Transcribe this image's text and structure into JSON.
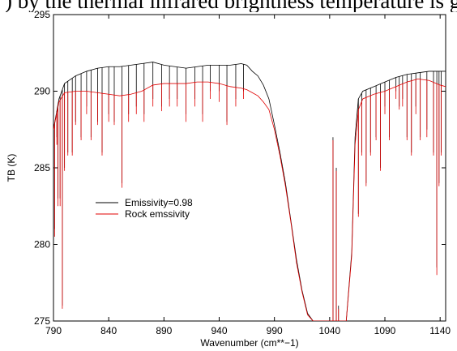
{
  "headline_fragment": ") by the thermal infrared brightness temperature is greatly",
  "chart_data": {
    "type": "line",
    "title": "",
    "xlabel": "Wavenumber (cm**−1)",
    "ylabel": "TB (K)",
    "xlim": [
      790,
      1145
    ],
    "ylim": [
      275,
      295
    ],
    "x_ticks": [
      790,
      840,
      890,
      940,
      990,
      1040,
      1090,
      1140
    ],
    "y_ticks": [
      275,
      280,
      285,
      290,
      295
    ],
    "x_tick_labels": [
      "790",
      "840",
      "890",
      "940",
      "990",
      "1040",
      "1090",
      "1140"
    ],
    "y_tick_labels": [
      "275",
      "280",
      "285",
      "290",
      "295"
    ],
    "grid": false,
    "legend_position": "center-left",
    "series": [
      {
        "name": "Emissivity=0.98",
        "color": "#000000",
        "envelope": [
          [
            790,
            287.5
          ],
          [
            795,
            289.5
          ],
          [
            800,
            290.5
          ],
          [
            810,
            291.0
          ],
          [
            820,
            291.3
          ],
          [
            830,
            291.5
          ],
          [
            840,
            291.6
          ],
          [
            850,
            291.6
          ],
          [
            860,
            291.7
          ],
          [
            870,
            291.8
          ],
          [
            880,
            291.9
          ],
          [
            890,
            291.7
          ],
          [
            900,
            291.6
          ],
          [
            910,
            291.5
          ],
          [
            920,
            291.6
          ],
          [
            930,
            291.7
          ],
          [
            940,
            291.7
          ],
          [
            950,
            291.7
          ],
          [
            960,
            291.8
          ],
          [
            965,
            291.7
          ],
          [
            970,
            291.3
          ],
          [
            975,
            291.0
          ],
          [
            980,
            290.4
          ],
          [
            985,
            289.5
          ],
          [
            990,
            287.8
          ],
          [
            995,
            286.0
          ],
          [
            1000,
            284.0
          ],
          [
            1005,
            281.5
          ],
          [
            1010,
            279.0
          ],
          [
            1015,
            277.0
          ],
          [
            1020,
            275.5
          ],
          [
            1025,
            274.5
          ],
          [
            1035,
            273.0
          ],
          [
            1045,
            273.0
          ],
          [
            1055,
            274.0
          ],
          [
            1060,
            279.5
          ],
          [
            1063,
            287.0
          ],
          [
            1066,
            289.5
          ],
          [
            1070,
            290.0
          ],
          [
            1080,
            290.3
          ],
          [
            1090,
            290.6
          ],
          [
            1100,
            290.9
          ],
          [
            1110,
            291.1
          ],
          [
            1120,
            291.2
          ],
          [
            1130,
            291.3
          ],
          [
            1140,
            291.3
          ],
          [
            1145,
            291.3
          ]
        ],
        "lines": [
          [
            791,
            281
          ],
          [
            793,
            287
          ],
          [
            794,
            283
          ],
          [
            796,
            283
          ],
          [
            798,
            276
          ],
          [
            800,
            285
          ],
          [
            803,
            286
          ],
          [
            807,
            286
          ],
          [
            810,
            288
          ],
          [
            815,
            287
          ],
          [
            820,
            289
          ],
          [
            824,
            287
          ],
          [
            830,
            288
          ],
          [
            834,
            286
          ],
          [
            840,
            288.5
          ],
          [
            845,
            288
          ],
          [
            852,
            284
          ],
          [
            858,
            288.5
          ],
          [
            865,
            289
          ],
          [
            872,
            288.5
          ],
          [
            880,
            289.5
          ],
          [
            888,
            289
          ],
          [
            895,
            289.5
          ],
          [
            902,
            289.5
          ],
          [
            910,
            288.5
          ],
          [
            918,
            289.5
          ],
          [
            925,
            288.5
          ],
          [
            932,
            290
          ],
          [
            940,
            290
          ],
          [
            947,
            288
          ],
          [
            955,
            289.5
          ],
          [
            962,
            290
          ],
          [
            1043,
            287
          ],
          [
            1046,
            285
          ],
          [
            1048,
            276
          ],
          [
            1066,
            282
          ],
          [
            1069,
            286
          ],
          [
            1073,
            284
          ],
          [
            1077,
            286
          ],
          [
            1082,
            287
          ],
          [
            1086,
            285
          ],
          [
            1090,
            289
          ],
          [
            1094,
            287
          ],
          [
            1100,
            290
          ],
          [
            1103,
            289
          ],
          [
            1106,
            289.5
          ],
          [
            1110,
            287
          ],
          [
            1114,
            286
          ],
          [
            1118,
            289
          ],
          [
            1122,
            287
          ],
          [
            1128,
            287.5
          ],
          [
            1134,
            286
          ],
          [
            1137,
            278.5
          ],
          [
            1139,
            284
          ],
          [
            1141,
            286
          ]
        ]
      },
      {
        "name": "Rock  emssivity",
        "color": "#e00000",
        "envelope": [
          [
            790,
            287.5
          ],
          [
            795,
            289.3
          ],
          [
            800,
            289.9
          ],
          [
            810,
            290.0
          ],
          [
            820,
            290.0
          ],
          [
            830,
            289.9
          ],
          [
            840,
            289.8
          ],
          [
            850,
            289.7
          ],
          [
            860,
            289.8
          ],
          [
            870,
            290.0
          ],
          [
            880,
            290.4
          ],
          [
            890,
            290.5
          ],
          [
            900,
            290.5
          ],
          [
            910,
            290.5
          ],
          [
            920,
            290.6
          ],
          [
            930,
            290.6
          ],
          [
            940,
            290.5
          ],
          [
            950,
            290.3
          ],
          [
            960,
            290.2
          ],
          [
            965,
            290.1
          ],
          [
            970,
            289.9
          ],
          [
            975,
            289.7
          ],
          [
            980,
            289.3
          ],
          [
            985,
            288.8
          ],
          [
            990,
            287.5
          ],
          [
            995,
            285.8
          ],
          [
            1000,
            283.8
          ],
          [
            1005,
            281.4
          ],
          [
            1010,
            278.8
          ],
          [
            1015,
            276.9
          ],
          [
            1020,
            275.4
          ],
          [
            1025,
            274.5
          ],
          [
            1035,
            273.0
          ],
          [
            1045,
            273.0
          ],
          [
            1055,
            274.0
          ],
          [
            1060,
            279.3
          ],
          [
            1063,
            286.5
          ],
          [
            1066,
            288.8
          ],
          [
            1070,
            289.5
          ],
          [
            1080,
            289.8
          ],
          [
            1090,
            290.0
          ],
          [
            1100,
            290.3
          ],
          [
            1110,
            290.6
          ],
          [
            1120,
            290.8
          ],
          [
            1130,
            290.7
          ],
          [
            1140,
            290.4
          ],
          [
            1145,
            290.3
          ]
        ],
        "lines": [
          [
            791,
            280.5
          ],
          [
            793,
            286.5
          ],
          [
            794,
            282.5
          ],
          [
            796,
            282.5
          ],
          [
            798,
            275.8
          ],
          [
            800,
            284.8
          ],
          [
            803,
            285.8
          ],
          [
            807,
            285.8
          ],
          [
            810,
            287.8
          ],
          [
            815,
            286.8
          ],
          [
            820,
            288.5
          ],
          [
            824,
            286.8
          ],
          [
            830,
            287.8
          ],
          [
            834,
            285.8
          ],
          [
            840,
            288
          ],
          [
            845,
            287.8
          ],
          [
            852,
            283.7
          ],
          [
            858,
            288
          ],
          [
            865,
            288.5
          ],
          [
            872,
            288
          ],
          [
            880,
            289
          ],
          [
            888,
            288.7
          ],
          [
            895,
            289
          ],
          [
            902,
            289
          ],
          [
            910,
            288
          ],
          [
            918,
            289
          ],
          [
            925,
            288
          ],
          [
            932,
            289.5
          ],
          [
            940,
            289.3
          ],
          [
            947,
            287.8
          ],
          [
            955,
            289
          ],
          [
            962,
            289.5
          ],
          [
            1043,
            286.8
          ],
          [
            1046,
            284.8
          ],
          [
            1048,
            275.8
          ],
          [
            1066,
            281.8
          ],
          [
            1069,
            285.8
          ],
          [
            1073,
            283.8
          ],
          [
            1077,
            285.8
          ],
          [
            1082,
            286.8
          ],
          [
            1086,
            284.8
          ],
          [
            1090,
            288.5
          ],
          [
            1094,
            286.8
          ],
          [
            1100,
            289.5
          ],
          [
            1103,
            288.8
          ],
          [
            1106,
            289
          ],
          [
            1110,
            286.8
          ],
          [
            1114,
            285.8
          ],
          [
            1118,
            288.5
          ],
          [
            1122,
            286.8
          ],
          [
            1128,
            287
          ],
          [
            1134,
            285.8
          ],
          [
            1137,
            278
          ],
          [
            1139,
            283.8
          ],
          [
            1141,
            285.8
          ]
        ]
      }
    ]
  }
}
